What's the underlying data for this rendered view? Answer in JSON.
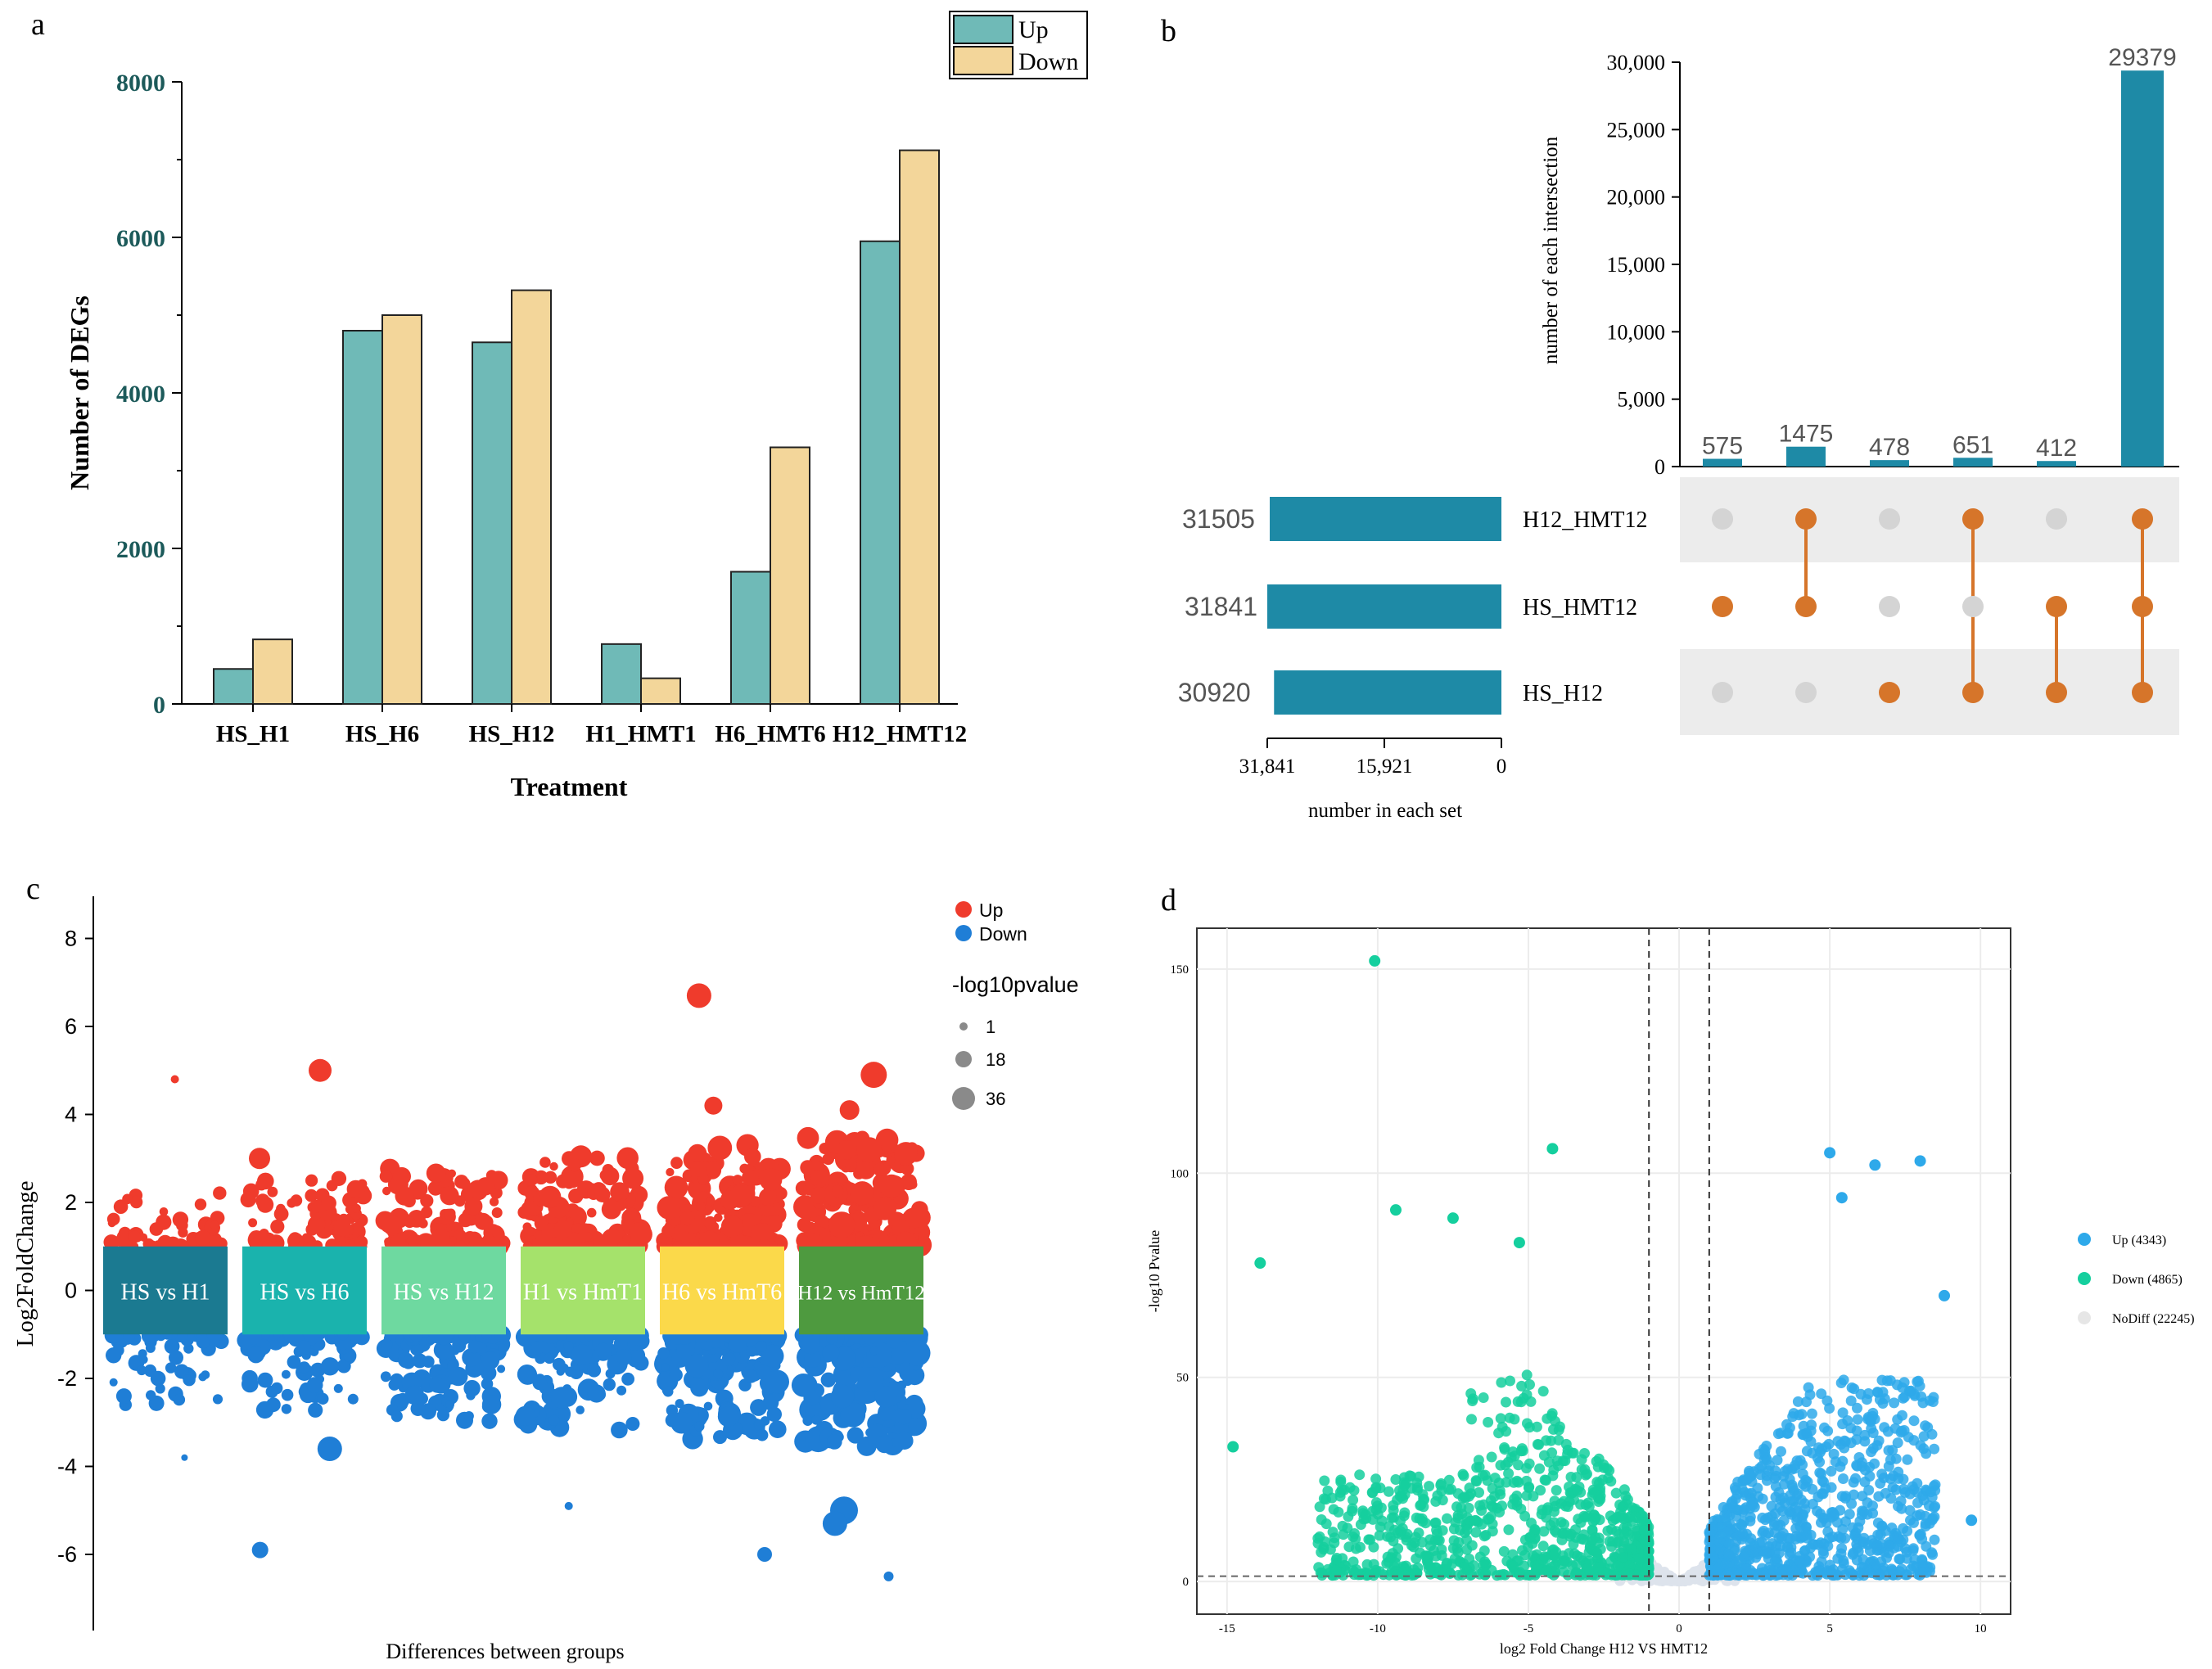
{
  "panels": {
    "a": "a",
    "b": "b",
    "c": "c",
    "d": "d"
  },
  "chart_data": [
    {
      "panel": "a",
      "type": "bar",
      "title": "",
      "xlabel": "Treatment",
      "ylabel": "Number of DEGs",
      "ylim": [
        0,
        8000
      ],
      "yticks": [
        "0",
        "2000",
        "4000",
        "6000",
        "8000"
      ],
      "categories": [
        "HS_H1",
        "HS_H6",
        "HS_H12",
        "H1_HMT1",
        "H6_HMT6",
        "H12_HMT12"
      ],
      "series": [
        {
          "name": "Up",
          "color": "#6fbab7",
          "values": [
            450,
            4800,
            4650,
            770,
            1700,
            5950
          ]
        },
        {
          "name": "Down",
          "color": "#f3d69a",
          "values": [
            830,
            5000,
            5320,
            330,
            3300,
            7120
          ]
        }
      ],
      "legend": [
        "Up",
        "Down"
      ]
    },
    {
      "panel": "b",
      "type": "upset",
      "intersection_axis_label": "number of each intersection",
      "intersection_ticks": [
        "0",
        "5,000",
        "10,000",
        "15,000",
        "20,000",
        "25,000",
        "30,000"
      ],
      "intersection_ylim": [
        0,
        30000
      ],
      "intersections": [
        {
          "count": 575,
          "label": "575",
          "sets": [
            "HS_HMT12"
          ]
        },
        {
          "count": 1475,
          "label": "1475",
          "sets": [
            "H12_HMT12",
            "HS_HMT12"
          ]
        },
        {
          "count": 478,
          "label": "478",
          "sets": [
            "HS_H12"
          ]
        },
        {
          "count": 651,
          "label": "651",
          "sets": [
            "H12_HMT12",
            "HS_H12"
          ]
        },
        {
          "count": 412,
          "label": "412",
          "sets": [
            "HS_HMT12",
            "HS_H12"
          ]
        },
        {
          "count": 29379,
          "label": "29379",
          "sets": [
            "H12_HMT12",
            "HS_HMT12",
            "HS_H12"
          ]
        }
      ],
      "sets": [
        {
          "name": "H12_HMT12",
          "size": 31505,
          "label": "31505"
        },
        {
          "name": "HS_HMT12",
          "size": 31841,
          "label": "31841"
        },
        {
          "name": "HS_H12",
          "size": 30920,
          "label": "30920"
        }
      ],
      "set_axis_label": "number in each set",
      "set_ticks": [
        "31,841",
        "15,921",
        "0"
      ],
      "set_xmax": 31841,
      "bar_color": "#1e8aa6",
      "dot_color": "#d6752a"
    },
    {
      "panel": "c",
      "type": "scatter",
      "xlabel": "Differences between groups",
      "ylabel": "Log2FoldChange",
      "ylim": [
        -7.6,
        8.4
      ],
      "yticks": [
        "8",
        "6",
        "4",
        "2",
        "0",
        "-2",
        "-4",
        "-6"
      ],
      "groups": [
        {
          "label": "HS vs H1",
          "color": "#1b7a91"
        },
        {
          "label": "HS vs H6",
          "color": "#1ab3ad"
        },
        {
          "label": "HS vs H12",
          "color": "#6ed9a0"
        },
        {
          "label": "H1 vs HmT1",
          "color": "#a5e26b"
        },
        {
          "label": "H6 vs HmT6",
          "color": "#fbd94a"
        },
        {
          "label": "H12 vs HmT12",
          "color": "#4e9a3f"
        }
      ],
      "legend": {
        "up": "Up",
        "down": "Down",
        "up_color": "#ef3b2c",
        "down_color": "#1f7ed6",
        "size_title": "-log10pvalue",
        "sizes": [
          "1",
          "18",
          "36"
        ]
      },
      "highlight_points": [
        {
          "group": 4,
          "y": 6.7,
          "size": 26
        },
        {
          "group": 1,
          "y": 5.0,
          "size": 24
        },
        {
          "group": 5,
          "y": 4.9,
          "size": 28
        },
        {
          "group": 0,
          "y": 4.8,
          "size": 6
        },
        {
          "group": 5,
          "y": 4.1,
          "size": 20
        },
        {
          "group": 4,
          "y": 4.2,
          "size": 18
        },
        {
          "group": 1,
          "y": 3.0,
          "size": 22
        },
        {
          "group": 0,
          "y": -3.8,
          "size": 4
        },
        {
          "group": 1,
          "y": -3.6,
          "size": 26
        },
        {
          "group": 1,
          "y": -5.9,
          "size": 16
        },
        {
          "group": 5,
          "y": -5.0,
          "size": 30
        },
        {
          "group": 5,
          "y": -5.3,
          "size": 26
        },
        {
          "group": 5,
          "y": -6.5,
          "size": 8
        },
        {
          "group": 4,
          "y": -6.0,
          "size": 14
        },
        {
          "group": 3,
          "y": -4.9,
          "size": 6
        }
      ]
    },
    {
      "panel": "d",
      "type": "scatter",
      "subtype": "volcano",
      "xlabel": "log2 Fold Change H12 VS HMT12",
      "ylabel": "-log10 Pvalue",
      "xlim": [
        -16,
        11
      ],
      "ylim": [
        -8,
        160
      ],
      "xticks": [
        "-15",
        "-10",
        "-5",
        "0",
        "5",
        "10"
      ],
      "yticks": [
        "0",
        "50",
        "100",
        "150"
      ],
      "threshold_x": [
        -1,
        1
      ],
      "threshold_y": 1.3,
      "legend": [
        {
          "label": "Up (4343)",
          "color": "#2ea9ea"
        },
        {
          "label": "Down (4865)",
          "color": "#15cf9e"
        },
        {
          "label": "NoDiff (22245)",
          "color": "#e6e6e6"
        }
      ],
      "highlight_points": [
        {
          "x": -10.1,
          "y": 152,
          "cls": "down"
        },
        {
          "x": -4.2,
          "y": 106,
          "cls": "down"
        },
        {
          "x": -9.4,
          "y": 91,
          "cls": "down"
        },
        {
          "x": -13.9,
          "y": 78,
          "cls": "down"
        },
        {
          "x": -14.8,
          "y": 33,
          "cls": "down"
        },
        {
          "x": -7.5,
          "y": 89,
          "cls": "down"
        },
        {
          "x": -5.3,
          "y": 83,
          "cls": "down"
        },
        {
          "x": 5.0,
          "y": 105,
          "cls": "up"
        },
        {
          "x": 8.0,
          "y": 103,
          "cls": "up"
        },
        {
          "x": 6.5,
          "y": 102,
          "cls": "up"
        },
        {
          "x": 5.4,
          "y": 94,
          "cls": "up"
        },
        {
          "x": 9.7,
          "y": 15,
          "cls": "up"
        },
        {
          "x": 8.8,
          "y": 70,
          "cls": "up"
        }
      ]
    }
  ]
}
